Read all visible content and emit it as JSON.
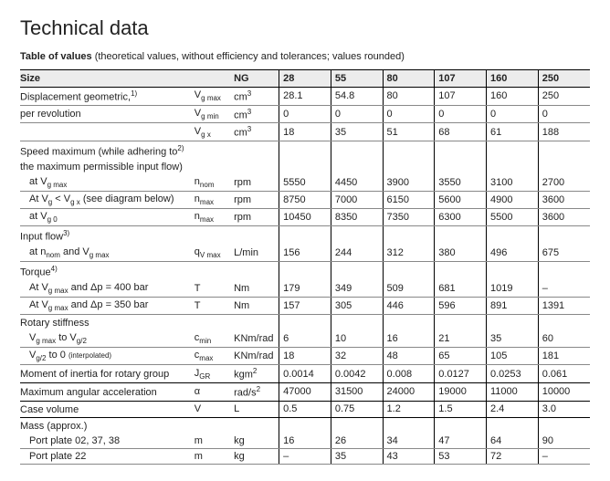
{
  "title": "Technical data",
  "subtitle_bold": "Table of values",
  "subtitle_rest": " (theoretical values, without efficiency and tolerances; values rounded)",
  "header": {
    "size": "Size",
    "ng": "NG",
    "cols": [
      "28",
      "55",
      "80",
      "107",
      "160",
      "250"
    ]
  },
  "rows": [
    {
      "label": "Displacement geometric",
      "sup": "1)",
      "label2": ",",
      "sym": "V",
      "sub": "g max",
      "unit": "cm",
      "usup": "3",
      "v": [
        "28.1",
        "54.8",
        "80",
        "107",
        "160",
        "250"
      ]
    },
    {
      "label": "per revolution",
      "sym": "V",
      "sub": "g min",
      "unit": "cm",
      "usup": "3",
      "v": [
        "0",
        "0",
        "0",
        "0",
        "0",
        "0"
      ]
    },
    {
      "label": "",
      "sym": "V",
      "sub": "g x",
      "unit": "cm",
      "usup": "3",
      "v": [
        "18",
        "35",
        "51",
        "68",
        "61",
        "188"
      ]
    },
    {
      "section": true,
      "label": "Speed maximum",
      "sup": "2)",
      "label2": " (while adhering to"
    },
    {
      "cont": true,
      "label": "the maximum permissible input flow)"
    },
    {
      "indent": true,
      "label": "at V",
      "lsub": "g max",
      "sym": "n",
      "sub": "nom",
      "unit": "rpm",
      "v": [
        "5550",
        "4450",
        "3900",
        "3550",
        "3100",
        "2700"
      ]
    },
    {
      "indent": true,
      "label": "At V",
      "lsub": "g",
      "label2": " < V",
      "lsub2": "g x",
      "label3": " (see diagram below)",
      "sym": "n",
      "sub": "max",
      "unit": "rpm",
      "v": [
        "8750",
        "7000",
        "6150",
        "5600",
        "4900",
        "3600"
      ]
    },
    {
      "indent": true,
      "label": "at V",
      "lsub": "g 0",
      "sym": "n",
      "sub": "max",
      "unit": "rpm",
      "v": [
        "10450",
        "8350",
        "7350",
        "6300",
        "5500",
        "3600"
      ]
    },
    {
      "section": true,
      "label": "Input flow",
      "sup": "3)"
    },
    {
      "indent": true,
      "label": "at n",
      "lsub": "nom",
      "label2": " and V",
      "lsub2": "g max",
      "sym": "q",
      "sub": "V max",
      "unit": "L/min",
      "v": [
        "156",
        "244",
        "312",
        "380",
        "496",
        "675"
      ]
    },
    {
      "section": true,
      "label": "Torque",
      "sup": "4)"
    },
    {
      "indent": true,
      "label": "At V",
      "lsub": "g max",
      "label2": " and Δp = 400 bar",
      "sym": "T",
      "unit": "Nm",
      "v": [
        "179",
        "349",
        "509",
        "681",
        "1019",
        "–"
      ]
    },
    {
      "indent": true,
      "label": "At V",
      "lsub": "g max",
      "label2": " and Δp = 350 bar",
      "sym": "T",
      "unit": "Nm",
      "v": [
        "157",
        "305",
        "446",
        "596",
        "891",
        "1391"
      ]
    },
    {
      "section": true,
      "label": "Rotary stiffness"
    },
    {
      "indent": true,
      "label": "V",
      "lsub": "g max",
      "label2": " to V",
      "lsub2": "g/2",
      "sym": "c",
      "sub": "min",
      "unit": "KNm/rad",
      "v": [
        "6",
        "10",
        "16",
        "21",
        "35",
        "60"
      ]
    },
    {
      "indent": true,
      "label": "V",
      "lsub": "g/2",
      "label2": " to 0 ",
      "small": "(interpolated)",
      "sym": "c",
      "sub": "max",
      "unit": "KNm/rad",
      "v": [
        "18",
        "32",
        "48",
        "65",
        "105",
        "181"
      ]
    },
    {
      "section": true,
      "label": "Moment of inertia for rotary group",
      "sym": "J",
      "sub": "GR",
      "unit": "kgm",
      "usup": "2",
      "v": [
        "0.0014",
        "0.0042",
        "0.008",
        "0.0127",
        "0.0253",
        "0.061"
      ]
    },
    {
      "section": true,
      "label": "Maximum angular acceleration",
      "sym": "α",
      "unit": "rad/s",
      "usup": "2",
      "v": [
        "47000",
        "31500",
        "24000",
        "19000",
        "11000",
        "10000"
      ]
    },
    {
      "section": true,
      "label": "Case volume",
      "sym": "V",
      "unit": "L",
      "v": [
        "0.5",
        "0.75",
        "1.2",
        "1.5",
        "2.4",
        "3.0"
      ]
    },
    {
      "section": true,
      "label": "Mass (approx.)"
    },
    {
      "indent": true,
      "label": "Port plate 02, 37, 38",
      "sym": "m",
      "unit": "kg",
      "v": [
        "16",
        "26",
        "34",
        "47",
        "64",
        "90"
      ]
    },
    {
      "indent": true,
      "label": "Port plate 22",
      "sym": "m",
      "unit": "kg",
      "v": [
        "–",
        "35",
        "43",
        "53",
        "72",
        "–"
      ]
    }
  ]
}
